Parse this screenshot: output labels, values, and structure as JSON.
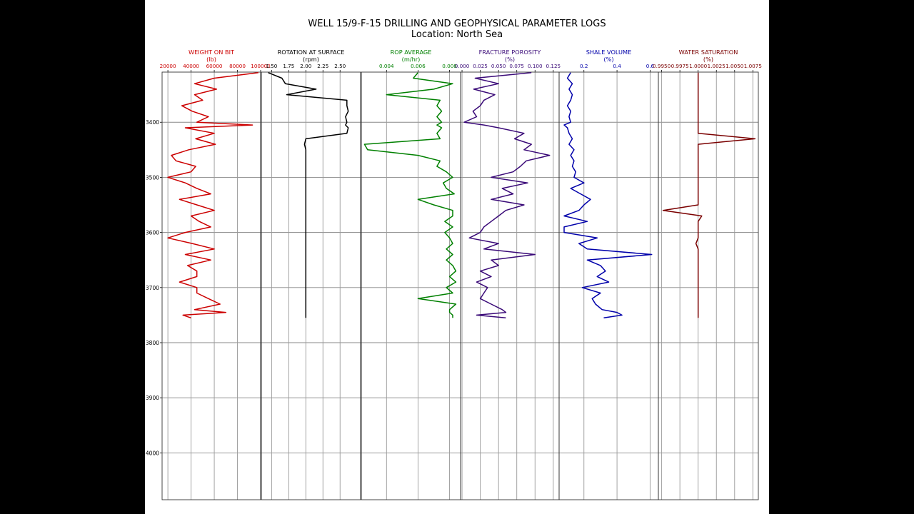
{
  "figure": {
    "title": "WELL 15/9-F-15 DRILLING AND GEOPHYSICAL PARAMETER LOGS",
    "subtitle": "Location: North Sea"
  },
  "chart_data": {
    "type": "line",
    "title": "WELL 15/9-F-15 DRILLING AND GEOPHYSICAL PARAMETER LOGS",
    "subtitle": "Location: North Sea",
    "orientation": "vertical well log (depth increasing downward)",
    "depth_axis": {
      "label": "",
      "ticks": [
        3400,
        3500,
        3600,
        3700,
        3800,
        3900,
        4000
      ],
      "range": [
        3309,
        4085
      ],
      "inverted": true,
      "grid": true
    },
    "depth": [
      3310,
      3320,
      3330,
      3340,
      3350,
      3360,
      3370,
      3380,
      3390,
      3400,
      3405,
      3410,
      3420,
      3430,
      3440,
      3450,
      3460,
      3470,
      3480,
      3490,
      3500,
      3510,
      3520,
      3530,
      3540,
      3550,
      3560,
      3570,
      3580,
      3590,
      3600,
      3610,
      3620,
      3630,
      3640,
      3650,
      3660,
      3670,
      3680,
      3690,
      3700,
      3710,
      3720,
      3730,
      3740,
      3745,
      3750,
      3755
    ],
    "tracks": [
      {
        "name": "WEIGHT ON BIT",
        "unit": "(lb)",
        "color": "#cc0000",
        "ticks": [
          "20000",
          "40000",
          "60000",
          "80000",
          "100000"
        ],
        "xlim": [
          15000,
          100000
        ],
        "values": [
          98000,
          60000,
          43000,
          62000,
          43000,
          50000,
          32000,
          41000,
          55000,
          45000,
          93000,
          35000,
          60000,
          44000,
          61000,
          38000,
          23000,
          27000,
          44000,
          40000,
          20000,
          35000,
          45000,
          57000,
          30000,
          45000,
          60000,
          40000,
          47000,
          57000,
          35000,
          20000,
          41000,
          60000,
          35000,
          57000,
          37000,
          45000,
          45000,
          30000,
          45000,
          45000,
          55000,
          65000,
          43000,
          70000,
          33000,
          40000
        ]
      },
      {
        "name": "ROTATION AT SURFACE",
        "unit": "(rpm)",
        "color": "#000000",
        "ticks": [
          "1.50",
          "1.75",
          "2.00",
          "2.25",
          "2.50"
        ],
        "xlim": [
          1.35,
          2.8
        ],
        "values": [
          1.45,
          1.65,
          1.7,
          2.15,
          1.72,
          2.6,
          2.6,
          2.62,
          2.58,
          2.6,
          2.58,
          2.62,
          2.6,
          2.0,
          1.98,
          2.0,
          2.0,
          2.0,
          2.0,
          2.0,
          2.0,
          2.0,
          2.0,
          2.0,
          2.0,
          2.0,
          2.0,
          2.0,
          2.0,
          2.0,
          2.0,
          2.0,
          2.0,
          2.0,
          2.0,
          2.0,
          2.0,
          2.0,
          2.0,
          2.0,
          2.0,
          2.0,
          2.0,
          2.0,
          2.0,
          2.0,
          2.0,
          2.0
        ]
      },
      {
        "name": "ROP AVERAGE",
        "unit": "(m/hr)",
        "color": "#008000",
        "ticks": [
          "0.004",
          "0.006",
          "0.008"
        ],
        "xlim": [
          0.0024,
          0.0087
        ],
        "values": [
          0.006,
          0.0057,
          0.0082,
          0.007,
          0.004,
          0.0074,
          0.0072,
          0.0075,
          0.0072,
          0.0075,
          0.0072,
          0.0075,
          0.0072,
          0.0074,
          0.0026,
          0.0028,
          0.006,
          0.0074,
          0.0072,
          0.0078,
          0.0082,
          0.0076,
          0.0078,
          0.0083,
          0.006,
          0.007,
          0.0082,
          0.0082,
          0.0077,
          0.0082,
          0.0077,
          0.008,
          0.0082,
          0.0078,
          0.0082,
          0.0078,
          0.0082,
          0.0084,
          0.008,
          0.0084,
          0.0078,
          0.0082,
          0.006,
          0.0084,
          0.008,
          0.008,
          0.0082,
          0.0082
        ]
      },
      {
        "name": "FRACTURE POROSITY",
        "unit": "(%)",
        "color": "#3a0a78",
        "ticks": [
          "0.000",
          "0.025",
          "0.050",
          "0.075",
          "0.100",
          "0.125"
        ],
        "xlim": [
          -0.002,
          0.133
        ],
        "values": [
          0.095,
          0.018,
          0.05,
          0.016,
          0.045,
          0.03,
          0.025,
          0.015,
          0.02,
          0.003,
          0.03,
          0.05,
          0.085,
          0.072,
          0.095,
          0.085,
          0.12,
          0.088,
          0.08,
          0.07,
          0.04,
          0.09,
          0.055,
          0.07,
          0.04,
          0.085,
          0.06,
          0.05,
          0.04,
          0.03,
          0.025,
          0.01,
          0.05,
          0.03,
          0.1,
          0.04,
          0.05,
          0.025,
          0.04,
          0.02,
          0.035,
          0.03,
          0.025,
          0.04,
          0.055,
          0.06,
          0.02,
          0.06
        ]
      },
      {
        "name": "SHALE VOLUME",
        "unit": "(%)",
        "color": "#0000aa",
        "ticks": [
          "0.2",
          "0.4",
          "0.6"
        ],
        "xlim": [
          0.05,
          0.65
        ],
        "values": [
          0.12,
          0.1,
          0.13,
          0.11,
          0.13,
          0.12,
          0.1,
          0.12,
          0.11,
          0.12,
          0.08,
          0.1,
          0.11,
          0.13,
          0.11,
          0.14,
          0.12,
          0.14,
          0.13,
          0.15,
          0.14,
          0.2,
          0.12,
          0.18,
          0.24,
          0.2,
          0.17,
          0.08,
          0.22,
          0.08,
          0.08,
          0.28,
          0.17,
          0.22,
          0.61,
          0.22,
          0.3,
          0.33,
          0.28,
          0.35,
          0.19,
          0.3,
          0.25,
          0.27,
          0.31,
          0.4,
          0.43,
          0.32
        ]
      },
      {
        "name": "WATER SATURATION",
        "unit": "(%)",
        "color": "#7a0000",
        "ticks": [
          "0.9950",
          "0.9975",
          "1.0000",
          "1.0025",
          "1.0050",
          "1.0075"
        ],
        "xlim": [
          0.99455,
          1.00825
        ],
        "values": [
          1.0,
          1.0,
          1.0,
          1.0,
          1.0,
          1.0,
          1.0,
          1.0,
          1.0,
          1.0,
          1.0,
          1.0,
          1.0,
          1.0078,
          1.0,
          1.0,
          1.0,
          1.0,
          1.0,
          1.0,
          1.0,
          1.0,
          1.0,
          1.0,
          1.0,
          1.0,
          0.9952,
          1.0005,
          1.0,
          1.0,
          1.0,
          1.0,
          0.9997,
          1.0,
          1.0,
          1.0,
          1.0,
          1.0,
          1.0,
          1.0,
          1.0,
          1.0,
          1.0,
          1.0,
          1.0,
          1.0,
          1.0,
          1.0
        ]
      }
    ],
    "legend": "track headers above each panel",
    "grid": true
  }
}
